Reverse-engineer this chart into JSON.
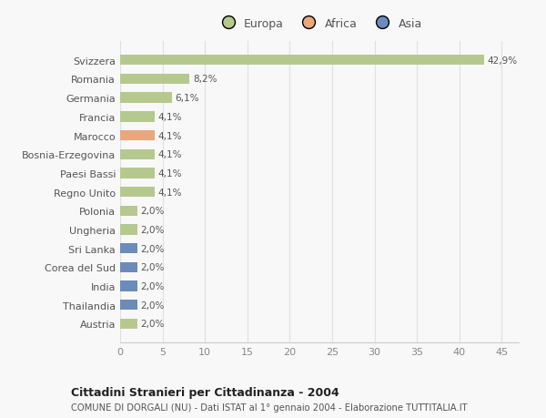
{
  "categories": [
    "Svizzera",
    "Romania",
    "Germania",
    "Francia",
    "Marocco",
    "Bosnia-Erzegovina",
    "Paesi Bassi",
    "Regno Unito",
    "Polonia",
    "Ungheria",
    "Sri Lanka",
    "Corea del Sud",
    "India",
    "Thailandia",
    "Austria"
  ],
  "values": [
    42.9,
    8.2,
    6.1,
    4.1,
    4.1,
    4.1,
    4.1,
    4.1,
    2.0,
    2.0,
    2.0,
    2.0,
    2.0,
    2.0,
    2.0
  ],
  "labels": [
    "42,9%",
    "8,2%",
    "6,1%",
    "4,1%",
    "4,1%",
    "4,1%",
    "4,1%",
    "4,1%",
    "2,0%",
    "2,0%",
    "2,0%",
    "2,0%",
    "2,0%",
    "2,0%",
    "2,0%"
  ],
  "continents": [
    "Europa",
    "Europa",
    "Europa",
    "Europa",
    "Africa",
    "Europa",
    "Europa",
    "Europa",
    "Europa",
    "Europa",
    "Asia",
    "Asia",
    "Asia",
    "Asia",
    "Europa"
  ],
  "colors": {
    "Europa": "#b5c98e",
    "Africa": "#e8a87c",
    "Asia": "#6b8cba"
  },
  "xlim": [
    0,
    47
  ],
  "xticks": [
    0,
    5,
    10,
    15,
    20,
    25,
    30,
    35,
    40,
    45
  ],
  "title": "Cittadini Stranieri per Cittadinanza - 2004",
  "subtitle": "COMUNE DI DORGALI (NU) - Dati ISTAT al 1° gennaio 2004 - Elaborazione TUTTITALIA.IT",
  "background_color": "#f8f8f8",
  "bar_height": 0.55
}
